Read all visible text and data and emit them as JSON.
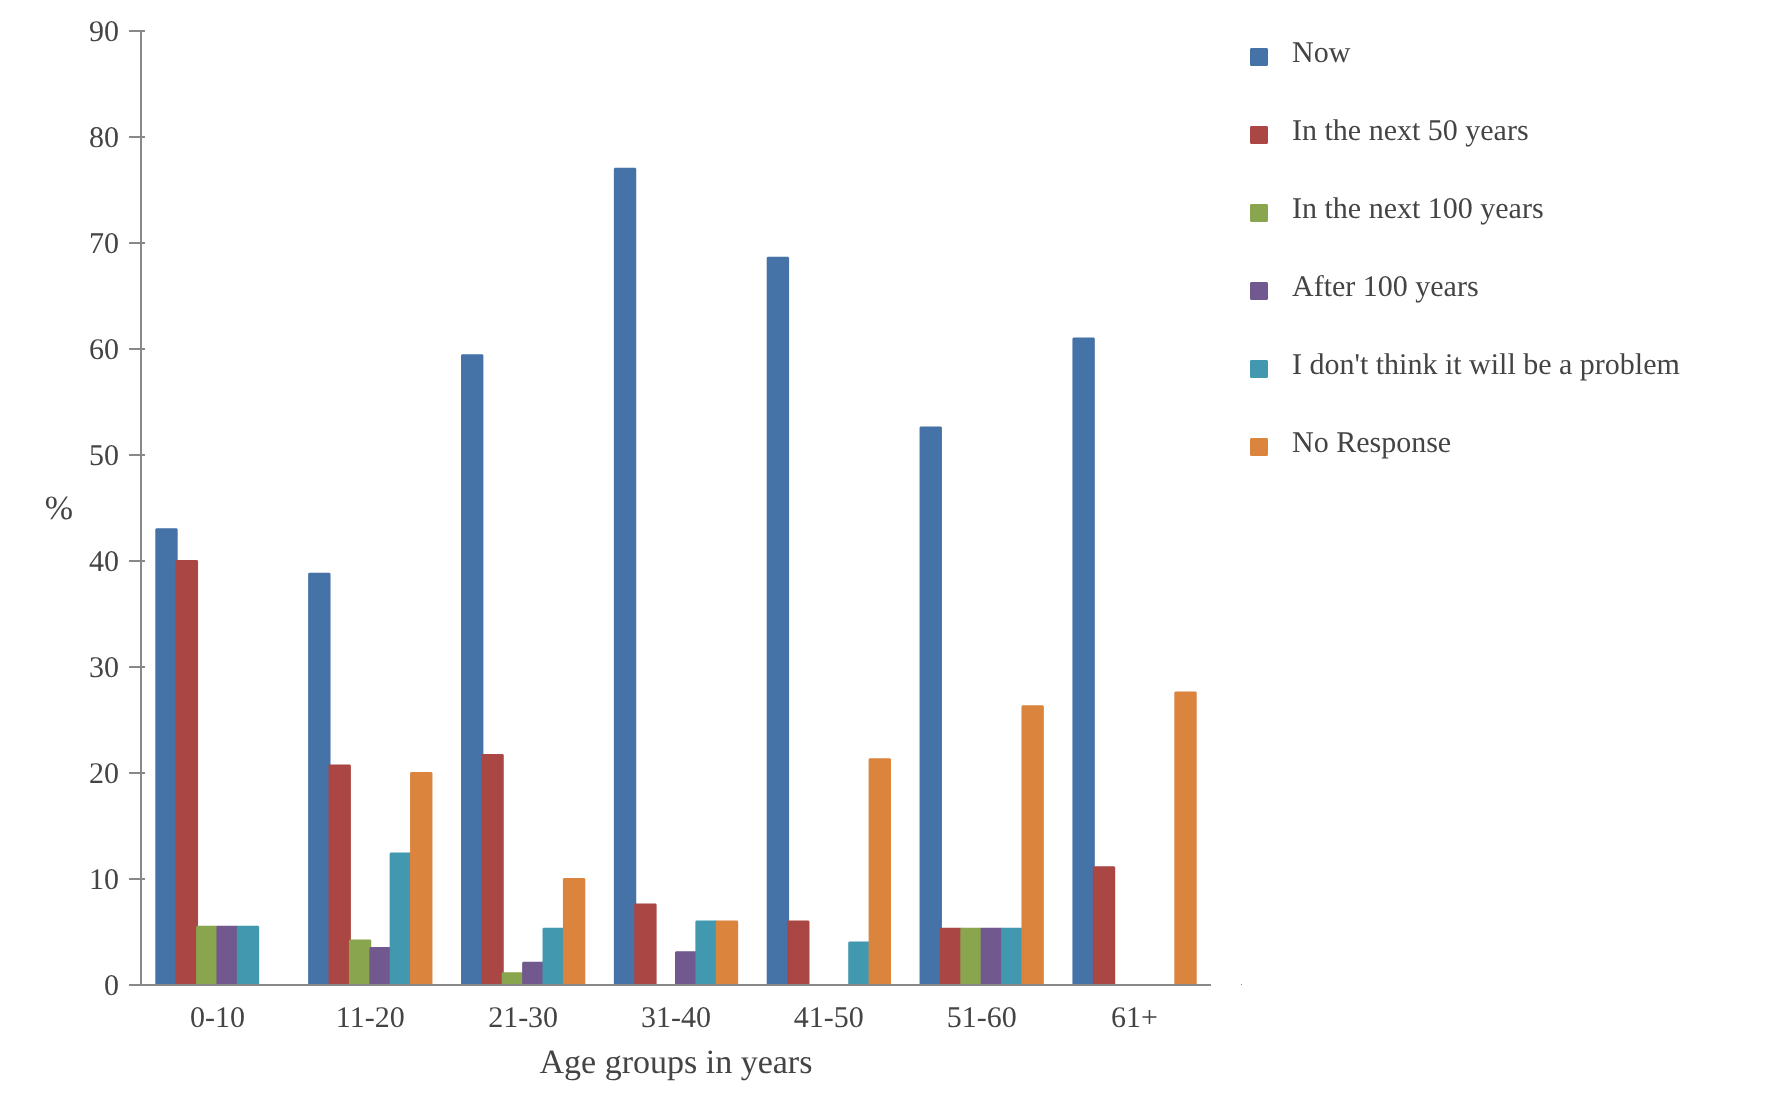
{
  "chart_data": {
    "type": "bar",
    "xlabel": "Age groups in years",
    "ylabel": "%",
    "categories": [
      "0-10",
      "11-20",
      "21-30",
      "31-40",
      "41-50",
      "51-60",
      "61+"
    ],
    "ylim": [
      0,
      90
    ],
    "yticks": [
      0,
      10,
      20,
      30,
      40,
      50,
      60,
      70,
      80,
      90
    ],
    "grid": false,
    "legend": "right",
    "series": [
      {
        "name": "Now",
        "color": "#4572a7",
        "values": [
          43,
          38.8,
          59.4,
          77,
          68.6,
          52.6,
          61
        ]
      },
      {
        "name": "In the next 50 years",
        "color": "#aa4643",
        "values": [
          40,
          20.7,
          21.7,
          7.6,
          6,
          5.3,
          11.1
        ]
      },
      {
        "name": "In the next 100 years",
        "color": "#89a54e",
        "values": [
          5.5,
          4.2,
          1.1,
          null,
          null,
          5.3,
          null
        ]
      },
      {
        "name": "After 100 years",
        "color": "#71588f",
        "values": [
          5.5,
          3.5,
          2.1,
          3.1,
          null,
          5.3,
          null
        ]
      },
      {
        "name": "I don't think it will be a problem",
        "color": "#4198af",
        "values": [
          5.5,
          12.4,
          5.3,
          6,
          4,
          5.3,
          null
        ]
      },
      {
        "name": "No Response",
        "color": "#db843d",
        "values": [
          null,
          20,
          10,
          6,
          21.3,
          26.3,
          27.6
        ]
      }
    ]
  }
}
